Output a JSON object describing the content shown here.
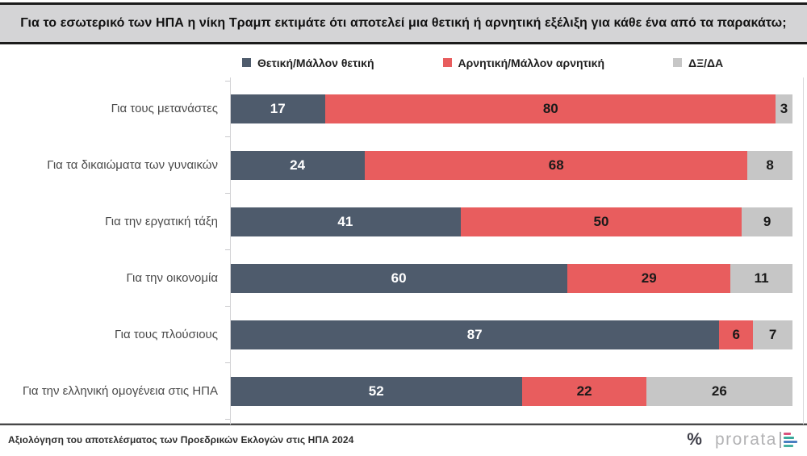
{
  "title": "Για το εσωτερικό των ΗΠΑ η νίκη Τραμπ εκτιμάτε ότι αποτελεί μια θετική ή αρνητική εξέλιξη για κάθε ένα από τα παρακάτω;",
  "legend": {
    "items": [
      {
        "label": "Θετική/Μάλλον θετική",
        "color": "#4e5b6c"
      },
      {
        "label": "Αρνητική/Μάλλον αρνητική",
        "color": "#e85d5e"
      },
      {
        "label": "ΔΞ/ΔΑ",
        "color": "#c6c6c6"
      }
    ]
  },
  "chart_data": {
    "type": "bar",
    "subtype": "horizontal-stacked-100",
    "title": "Για το εσωτερικό των ΗΠΑ η νίκη Τραμπ εκτιμάτε ότι αποτελεί μια θετική ή αρνητική εξέλιξη για κάθε ένα από τα παρακάτω;",
    "categories": [
      "Για τους μετανάστες",
      "Για τα δικαιώματα των γυναικών",
      "Για την εργατική τάξη",
      "Για την οικονομία",
      "Για τους πλούσιους",
      "Για την ελληνική ομογένεια στις ΗΠΑ"
    ],
    "series": [
      {
        "name": "Θετική/Μάλλον θετική",
        "color": "#4e5b6c",
        "label_color": "#ffffff",
        "values": [
          17,
          24,
          41,
          60,
          87,
          52
        ]
      },
      {
        "name": "Αρνητική/Μάλλον αρνητική",
        "color": "#e85d5e",
        "label_color": "#1a1a1a",
        "values": [
          80,
          68,
          50,
          29,
          6,
          22
        ]
      },
      {
        "name": "ΔΞ/ΔΑ",
        "color": "#c6c6c6",
        "label_color": "#1a1a1a",
        "values": [
          3,
          8,
          9,
          11,
          7,
          26
        ]
      }
    ],
    "xlim": [
      0,
      100
    ],
    "value_unit": "%",
    "legend_position": "top",
    "grid": false
  },
  "footer": {
    "source_text": "Αξιολόγηση του αποτελέσματος των Προεδρικών Εκλογών στις ΗΠΑ 2024",
    "brand": {
      "percent_glyph": "%",
      "name": "prorata"
    }
  }
}
